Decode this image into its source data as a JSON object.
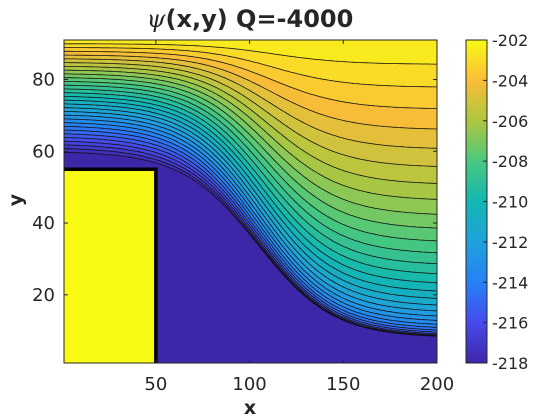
{
  "chart_data": {
    "type": "contour",
    "title_symbol": "ψ",
    "title_rest": "(x,y) Q=-4000",
    "xlabel": "x",
    "ylabel": "y",
    "xlim": [
      1,
      200
    ],
    "ylim": [
      1,
      91
    ],
    "xticks": [
      50,
      100,
      150,
      200
    ],
    "yticks": [
      20,
      40,
      60,
      80
    ],
    "colorbar": {
      "limits": [
        -218,
        -202
      ],
      "ticks": [
        -202,
        -204,
        -206,
        -208,
        -210,
        -212,
        -214,
        -216,
        -218
      ]
    },
    "obstacle": {
      "x": [
        1,
        50
      ],
      "y": [
        1,
        55
      ],
      "value": -202
    },
    "level_count": 30,
    "left_edge_min_y": 59,
    "right_edge_min_y": 8,
    "transition_center_x": 105,
    "colors": {
      "axis": "#262626",
      "obstacle_edge": "#000000",
      "contour_line": "#111111"
    }
  }
}
